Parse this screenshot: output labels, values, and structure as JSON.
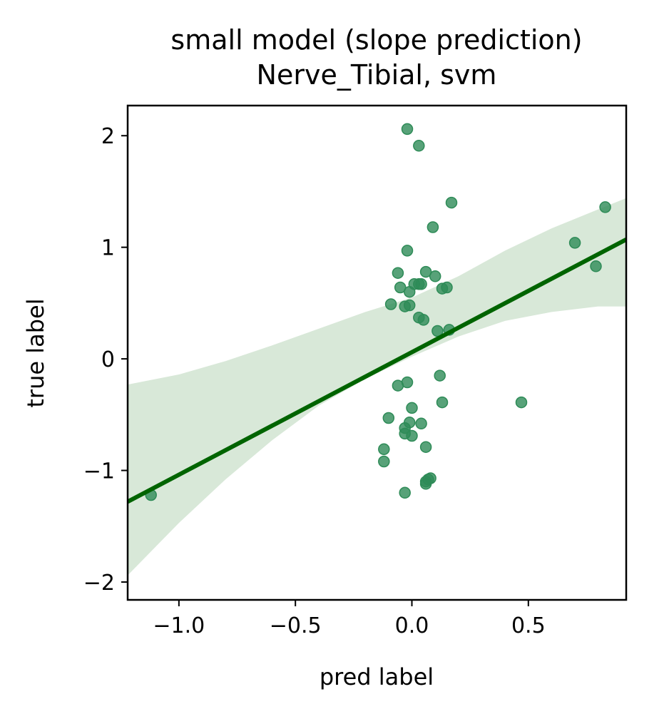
{
  "chart_data": {
    "type": "scatter",
    "title_line1": "small model (slope prediction)",
    "title_line2": "Nerve_Tibial, svm",
    "xlabel": "pred label",
    "ylabel": "true label",
    "xlim": [
      -1.22,
      0.92
    ],
    "ylim": [
      -2.16,
      2.27
    ],
    "x_ticks": [
      {
        "value": -1.0,
        "label": "−1.0"
      },
      {
        "value": -0.5,
        "label": "−0.5"
      },
      {
        "value": 0.0,
        "label": "0.0"
      },
      {
        "value": 0.5,
        "label": "0.5"
      }
    ],
    "y_ticks": [
      {
        "value": -2,
        "label": "−2"
      },
      {
        "value": -1,
        "label": "−1"
      },
      {
        "value": 0,
        "label": "0"
      },
      {
        "value": 1,
        "label": "1"
      },
      {
        "value": 2,
        "label": "2"
      }
    ],
    "grid": false,
    "colors": {
      "points": "#2e8b57",
      "line": "#006400",
      "band": "#d8e8d8"
    },
    "regression": {
      "x": [
        -1.22,
        0.92
      ],
      "y": [
        -1.28,
        1.07
      ]
    },
    "confidence_band": {
      "x": [
        -1.22,
        -1.0,
        -0.8,
        -0.6,
        -0.4,
        -0.2,
        0.0,
        0.2,
        0.4,
        0.6,
        0.8,
        0.92
      ],
      "upper": [
        -0.23,
        -0.14,
        -0.02,
        0.12,
        0.27,
        0.42,
        0.55,
        0.74,
        0.97,
        1.17,
        1.34,
        1.44
      ],
      "lower": [
        -1.94,
        -1.47,
        -1.08,
        -0.73,
        -0.42,
        -0.18,
        0.02,
        0.2,
        0.34,
        0.42,
        0.47,
        0.47
      ]
    },
    "points": [
      {
        "x": -1.12,
        "y": -1.22
      },
      {
        "x": -0.02,
        "y": 2.06
      },
      {
        "x": 0.03,
        "y": 1.91
      },
      {
        "x": 0.17,
        "y": 1.4
      },
      {
        "x": 0.09,
        "y": 1.18
      },
      {
        "x": -0.02,
        "y": 0.97
      },
      {
        "x": 0.7,
        "y": 1.04
      },
      {
        "x": 0.83,
        "y": 1.36
      },
      {
        "x": 0.79,
        "y": 0.83
      },
      {
        "x": -0.06,
        "y": 0.77
      },
      {
        "x": 0.06,
        "y": 0.78
      },
      {
        "x": 0.1,
        "y": 0.74
      },
      {
        "x": 0.01,
        "y": 0.67
      },
      {
        "x": 0.03,
        "y": 0.67
      },
      {
        "x": 0.04,
        "y": 0.67
      },
      {
        "x": -0.05,
        "y": 0.64
      },
      {
        "x": -0.01,
        "y": 0.6
      },
      {
        "x": 0.13,
        "y": 0.63
      },
      {
        "x": 0.15,
        "y": 0.64
      },
      {
        "x": -0.09,
        "y": 0.49
      },
      {
        "x": -0.03,
        "y": 0.47
      },
      {
        "x": -0.01,
        "y": 0.48
      },
      {
        "x": 0.03,
        "y": 0.37
      },
      {
        "x": 0.05,
        "y": 0.35
      },
      {
        "x": 0.11,
        "y": 0.25
      },
      {
        "x": 0.16,
        "y": 0.26
      },
      {
        "x": 0.12,
        "y": -0.15
      },
      {
        "x": -0.06,
        "y": -0.24
      },
      {
        "x": -0.02,
        "y": -0.21
      },
      {
        "x": 0.13,
        "y": -0.39
      },
      {
        "x": 0.47,
        "y": -0.39
      },
      {
        "x": 0.0,
        "y": -0.44
      },
      {
        "x": -0.1,
        "y": -0.53
      },
      {
        "x": -0.01,
        "y": -0.57
      },
      {
        "x": 0.04,
        "y": -0.58
      },
      {
        "x": -0.03,
        "y": -0.62
      },
      {
        "x": -0.03,
        "y": -0.67
      },
      {
        "x": 0.0,
        "y": -0.69
      },
      {
        "x": 0.06,
        "y": -0.79
      },
      {
        "x": -0.12,
        "y": -0.81
      },
      {
        "x": -0.12,
        "y": -0.92
      },
      {
        "x": 0.07,
        "y": -1.08
      },
      {
        "x": 0.08,
        "y": -1.07
      },
      {
        "x": 0.06,
        "y": -1.1
      },
      {
        "x": 0.06,
        "y": -1.12
      },
      {
        "x": -0.03,
        "y": -1.2
      }
    ]
  }
}
